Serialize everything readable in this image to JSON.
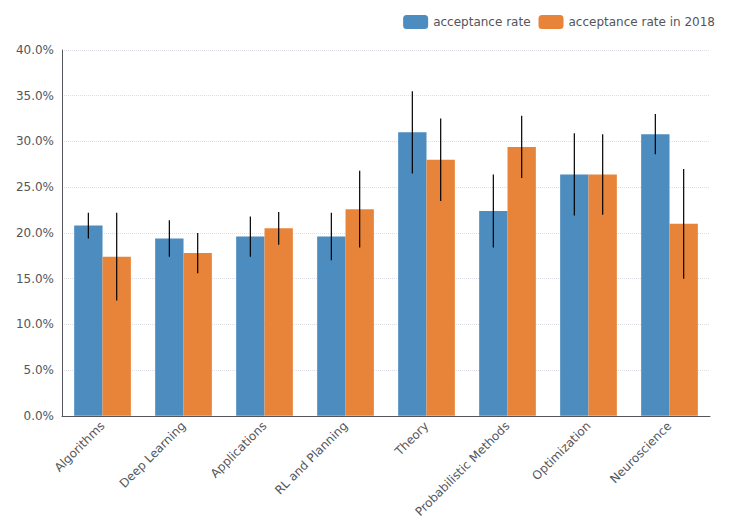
{
  "chart_data": {
    "type": "bar",
    "categories": [
      "Algorithms",
      "Deep Learning",
      "Applications",
      "RL and Planning",
      "Theory",
      "Probabilistic Methods",
      "Optimization",
      "Neuroscience"
    ],
    "series": [
      {
        "name": "acceptance rate",
        "color": "#4C8CBF",
        "values": [
          0.208,
          0.194,
          0.196,
          0.196,
          0.31,
          0.224,
          0.264,
          0.308
        ],
        "errors": [
          0.014,
          0.02,
          0.022,
          0.026,
          0.045,
          0.04,
          0.045,
          0.022
        ]
      },
      {
        "name": "acceptance rate in 2018",
        "color": "#E8843A",
        "values": [
          0.174,
          0.178,
          0.205,
          0.226,
          0.28,
          0.294,
          0.264,
          0.21
        ],
        "errors": [
          0.048,
          0.022,
          0.018,
          0.042,
          0.045,
          0.034,
          0.044,
          0.06
        ]
      }
    ],
    "ylim": [
      0.0,
      0.4
    ],
    "yticks": [
      {
        "value": 0.0,
        "label": "0.0%"
      },
      {
        "value": 0.05,
        "label": "5.0%"
      },
      {
        "value": 0.1,
        "label": "10.0%"
      },
      {
        "value": 0.15,
        "label": "15.0%"
      },
      {
        "value": 0.2,
        "label": "20.0%"
      },
      {
        "value": 0.25,
        "label": "25.0%"
      },
      {
        "value": 0.3,
        "label": "30.0%"
      },
      {
        "value": 0.35,
        "label": "35.0%"
      },
      {
        "value": 0.4,
        "label": "40.0%"
      }
    ],
    "grid": true,
    "legend": "upper right"
  }
}
